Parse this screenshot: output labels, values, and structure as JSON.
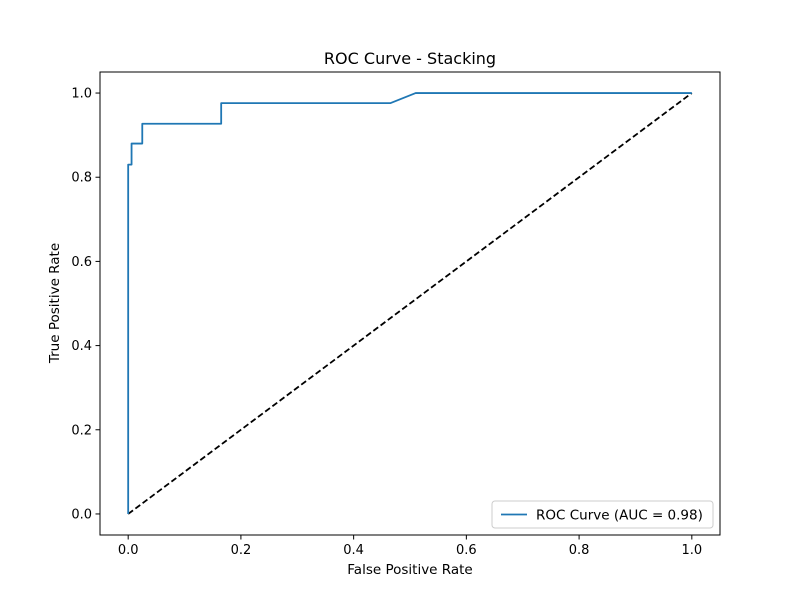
{
  "chart_data": {
    "type": "line",
    "title": "ROC Curve - Stacking",
    "xlabel": "False Positive Rate",
    "ylabel": "True Positive Rate",
    "xlim": [
      -0.05,
      1.05
    ],
    "ylim": [
      -0.05,
      1.05
    ],
    "x_ticks": [
      0.0,
      0.2,
      0.4,
      0.6,
      0.8,
      1.0
    ],
    "y_ticks": [
      0.0,
      0.2,
      0.4,
      0.6,
      0.8,
      1.0
    ],
    "x_tick_labels": [
      "0.0",
      "0.2",
      "0.4",
      "0.6",
      "0.8",
      "1.0"
    ],
    "y_tick_labels": [
      "0.0",
      "0.2",
      "0.4",
      "0.6",
      "0.8",
      "1.0"
    ],
    "grid": false,
    "legend_position": "lower-right",
    "series": [
      {
        "name": "ROC Curve (AUC = 0.98)",
        "color": "#1f77b4",
        "line_style": "solid",
        "x": [
          0.0,
          0.0,
          0.0,
          0.006,
          0.006,
          0.025,
          0.025,
          0.165,
          0.165,
          0.465,
          0.51,
          1.0
        ],
        "y": [
          0.0,
          0.44,
          0.83,
          0.83,
          0.88,
          0.88,
          0.927,
          0.927,
          0.976,
          0.976,
          1.0,
          1.0
        ]
      },
      {
        "color": "#000000",
        "line_style": "dashed",
        "x": [
          0.0,
          1.0
        ],
        "y": [
          0.0,
          1.0
        ]
      }
    ]
  }
}
